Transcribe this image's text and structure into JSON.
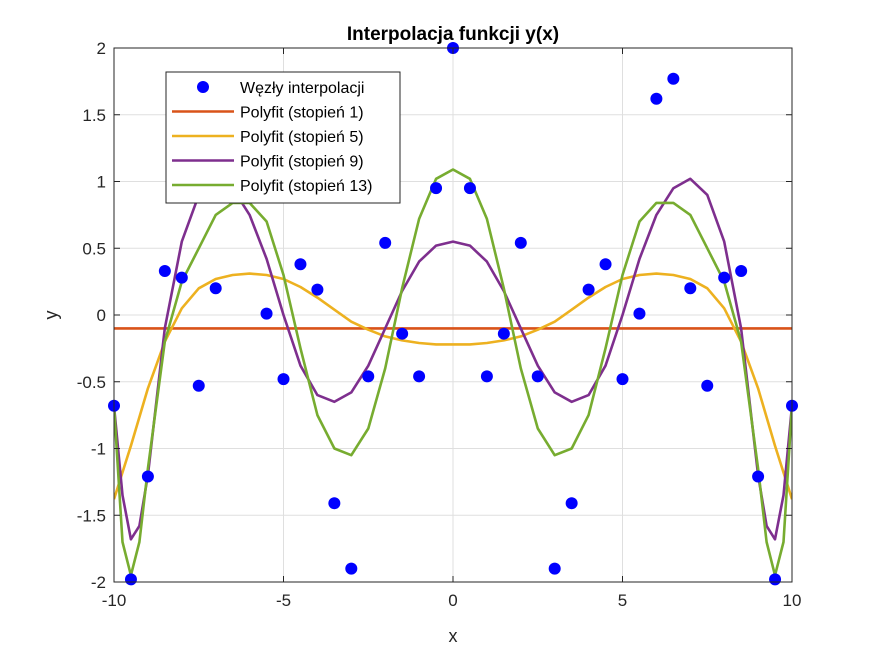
{
  "chart_data": {
    "type": "scatter",
    "title": "Interpolacja funkcji y(x)",
    "xlabel": "x",
    "ylabel": "y",
    "xlim": [
      -10,
      10
    ],
    "ylim": [
      -2,
      2
    ],
    "grid": true,
    "xticks": [
      -10,
      -5,
      0,
      5,
      10
    ],
    "xtick_labels": [
      "-10",
      "-5",
      "0",
      "5",
      "10"
    ],
    "yticks": [
      -2,
      -1.5,
      -1,
      -0.5,
      0,
      0.5,
      1,
      1.5,
      2
    ],
    "ytick_labels": [
      "-2",
      "-1.5",
      "-1",
      "-0.5",
      "0",
      "0.5",
      "1",
      "1.5",
      "2"
    ],
    "legend_position": "top-left",
    "nodes": {
      "name": "Węzły interpolacji",
      "color": "#0000ff",
      "x": [
        -10,
        -9.5,
        -9,
        -8.5,
        -8,
        -7.5,
        -7,
        -6.5,
        -6,
        -5.5,
        -5,
        -4.5,
        -4,
        -3.5,
        -3,
        -2.5,
        -2,
        -1.5,
        -1,
        -0.5,
        0,
        0.5,
        1,
        1.5,
        2,
        2.5,
        3,
        3.5,
        4,
        4.5,
        5,
        5.5,
        6,
        6.5,
        7,
        7.5,
        8,
        8.5,
        9,
        9.5,
        10
      ],
      "y": [
        -0.68,
        -1.98,
        -1.21,
        0.33,
        0.28,
        -0.53,
        0.2,
        1.77,
        1.62,
        0.01,
        -0.48,
        0.38,
        0.19,
        -1.41,
        -1.9,
        -0.46,
        0.54,
        -0.14,
        -0.46,
        0.95,
        2.0,
        0.95,
        -0.46,
        -0.14,
        0.54,
        -0.46,
        -1.9,
        -1.41,
        0.19,
        0.38,
        -0.48,
        0.01,
        1.62,
        1.77,
        0.2,
        -0.53,
        0.28,
        0.33,
        -1.21,
        -1.98,
        -0.68
      ]
    },
    "series": [
      {
        "name": "Polyfit (stopień 1)",
        "color": "#d95319",
        "x": [
          -10,
          10
        ],
        "y": [
          -0.1,
          -0.1
        ]
      },
      {
        "name": "Polyfit (stopień 5)",
        "color": "#edb120",
        "x": [
          -10,
          -9.5,
          -9,
          -8.5,
          -8,
          -7.5,
          -7,
          -6.5,
          -6,
          -5.5,
          -5,
          -4.5,
          -4,
          -3.5,
          -3,
          -2.5,
          -2,
          -1.5,
          -1,
          -0.5,
          0,
          0.5,
          1,
          1.5,
          2,
          2.5,
          3,
          3.5,
          4,
          4.5,
          5,
          5.5,
          6,
          6.5,
          7,
          7.5,
          8,
          8.5,
          9,
          9.5,
          10
        ],
        "y": [
          -1.38,
          -0.98,
          -0.55,
          -0.2,
          0.05,
          0.2,
          0.27,
          0.3,
          0.31,
          0.3,
          0.27,
          0.21,
          0.13,
          0.04,
          -0.05,
          -0.11,
          -0.16,
          -0.19,
          -0.21,
          -0.22,
          -0.22,
          -0.22,
          -0.21,
          -0.19,
          -0.16,
          -0.11,
          -0.05,
          0.04,
          0.13,
          0.21,
          0.27,
          0.3,
          0.31,
          0.3,
          0.27,
          0.2,
          0.05,
          -0.2,
          -0.55,
          -0.98,
          -1.38
        ]
      },
      {
        "name": "Polyfit (stopień 9)",
        "color": "#7e2f8e",
        "x": [
          -10,
          -9.75,
          -9.5,
          -9.25,
          -9,
          -8.5,
          -8,
          -7.5,
          -7,
          -6.5,
          -6,
          -5.5,
          -5,
          -4.5,
          -4,
          -3.5,
          -3,
          -2.5,
          -2,
          -1.5,
          -1,
          -0.5,
          0,
          0.5,
          1,
          1.5,
          2,
          2.5,
          3,
          3.5,
          4,
          4.5,
          5,
          5.5,
          6,
          6.5,
          7,
          7.5,
          8,
          8.5,
          9,
          9.25,
          9.5,
          9.75,
          10
        ],
        "y": [
          -0.68,
          -1.35,
          -1.68,
          -1.58,
          -1.2,
          -0.1,
          0.55,
          0.9,
          1.02,
          0.95,
          0.75,
          0.42,
          0.0,
          -0.38,
          -0.6,
          -0.65,
          -0.58,
          -0.38,
          -0.1,
          0.18,
          0.4,
          0.52,
          0.55,
          0.52,
          0.4,
          0.18,
          -0.1,
          -0.38,
          -0.58,
          -0.65,
          -0.6,
          -0.38,
          0.0,
          0.42,
          0.75,
          0.95,
          1.02,
          0.9,
          0.55,
          -0.1,
          -1.2,
          -1.58,
          -1.68,
          -1.35,
          -0.68
        ]
      },
      {
        "name": "Polyfit (stopień 13)",
        "color": "#77ac30",
        "x": [
          -10,
          -9.75,
          -9.5,
          -9.25,
          -9,
          -8.5,
          -8,
          -7.5,
          -7,
          -6.5,
          -6,
          -5.5,
          -5,
          -4.5,
          -4,
          -3.5,
          -3,
          -2.5,
          -2,
          -1.5,
          -1,
          -0.5,
          0,
          0.5,
          1,
          1.5,
          2,
          2.5,
          3,
          3.5,
          4,
          4.5,
          5,
          5.5,
          6,
          6.5,
          7,
          7.5,
          8,
          8.5,
          9,
          9.25,
          9.5,
          9.75,
          10
        ],
        "y": [
          -0.68,
          -1.7,
          -1.95,
          -1.7,
          -1.15,
          -0.2,
          0.25,
          0.5,
          0.75,
          0.84,
          0.84,
          0.7,
          0.3,
          -0.25,
          -0.75,
          -1.0,
          -1.05,
          -0.85,
          -0.4,
          0.2,
          0.72,
          1.02,
          1.09,
          1.02,
          0.72,
          0.2,
          -0.4,
          -0.85,
          -1.05,
          -1.0,
          -0.75,
          -0.25,
          0.3,
          0.7,
          0.84,
          0.84,
          0.75,
          0.5,
          0.25,
          -0.2,
          -1.15,
          -1.7,
          -1.95,
          -1.7,
          -0.68
        ]
      }
    ]
  }
}
